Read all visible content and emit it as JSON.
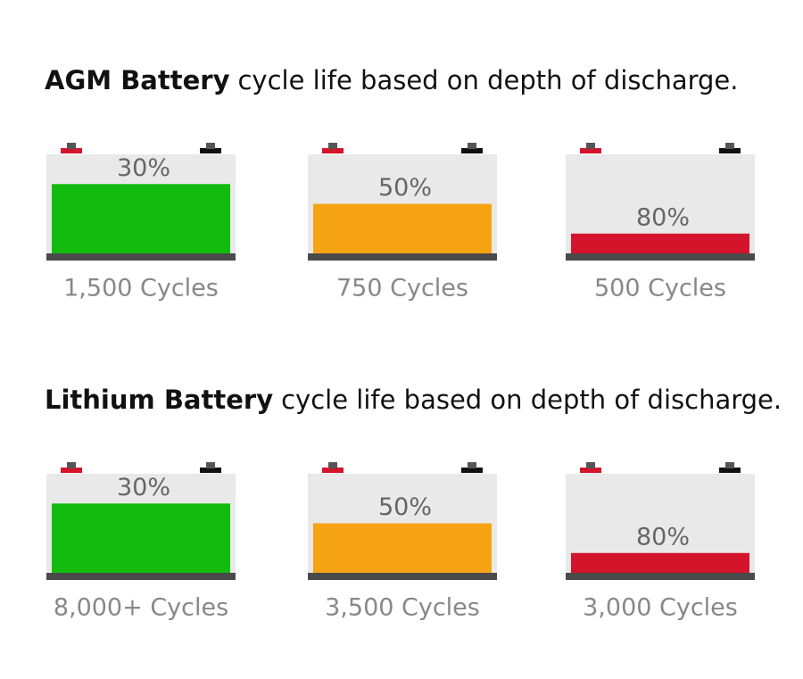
{
  "sections": [
    {
      "title_bold": "AGM Battery",
      "title_rest": "cycle life based on depth of discharge.",
      "batteries": [
        {
          "depth": "30%",
          "cycles": "1,500 Cycles",
          "color": "#12bb0d"
        },
        {
          "depth": "50%",
          "cycles": "750 Cycles",
          "color": "#f7a414"
        },
        {
          "depth": "80%",
          "cycles": "500 Cycles",
          "color": "#d3142b"
        }
      ]
    },
    {
      "title_bold": "Lithium Battery",
      "title_rest": "cycle life based on depth of discharge.",
      "batteries": [
        {
          "depth": "30%",
          "cycles": "8,000+ Cycles",
          "color": "#12bb0d"
        },
        {
          "depth": "50%",
          "cycles": "3,500 Cycles",
          "color": "#f7a414"
        },
        {
          "depth": "80%",
          "cycles": "3,000 Cycles",
          "color": "#d3142b"
        }
      ]
    }
  ]
}
